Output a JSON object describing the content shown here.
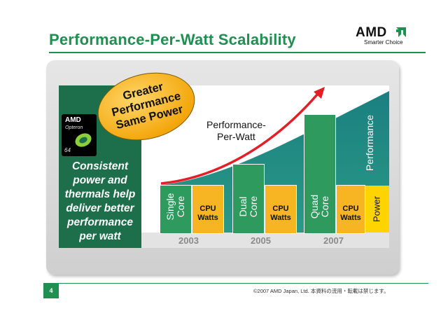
{
  "slide": {
    "title": "Performance-Per-Watt Scalability",
    "page_number": "4",
    "footer": "©2007 AMD Japan, Ltd. 本資料の流用・転載は禁じます。"
  },
  "logo": {
    "word": "AMD",
    "tagline": "Smarter Choice"
  },
  "chip": {
    "brand": "AMD",
    "product": "Opteron",
    "bits": "64"
  },
  "left_panel": {
    "lines": [
      "Consistent",
      "power and",
      "thermals help",
      "deliver better",
      "performance",
      "per watt"
    ]
  },
  "badge": {
    "lines": [
      "Greater",
      "Performance",
      "Same Power"
    ]
  },
  "chart": {
    "curve_label_lines": [
      "Performance-",
      "Per-Watt"
    ],
    "performance_label": "Performance",
    "power_label": "Power",
    "groups": [
      {
        "year": "2003",
        "core_lines": [
          "Single",
          "Core"
        ],
        "cpu_lines": [
          "CPU",
          "Watts"
        ]
      },
      {
        "year": "2005",
        "core_lines": [
          "Dual",
          "Core"
        ],
        "cpu_lines": [
          "CPU",
          "Watts"
        ]
      },
      {
        "year": "2007",
        "core_lines": [
          "Quad",
          "Core"
        ],
        "cpu_lines": [
          "CPU",
          "Watts"
        ]
      }
    ]
  },
  "colors": {
    "green": "#1f8f52",
    "dark_green": "#1d6f4b",
    "teal": "#177a7a",
    "bar_green": "#2e9a5e",
    "bar_orange": "#f7b423",
    "power_yellow": "#ffd400",
    "arrow_red": "#e31e24"
  }
}
